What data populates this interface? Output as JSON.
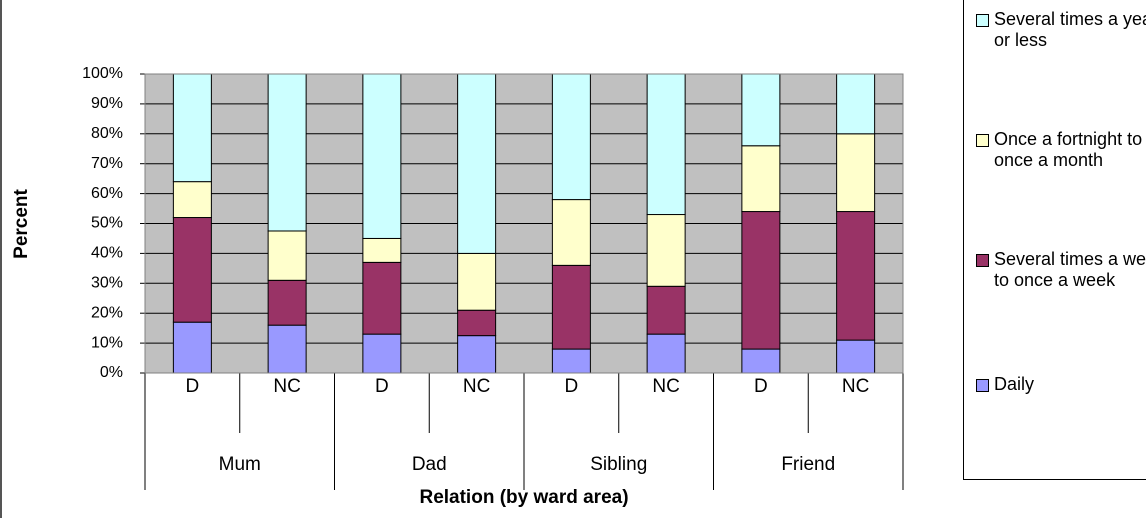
{
  "chart_data": {
    "type": "stacked_bar",
    "xlabel": "Relation (by ward area)",
    "ylabel": "Percent",
    "categories": [
      "D",
      "NC",
      "D",
      "NC",
      "D",
      "NC",
      "D",
      "NC"
    ],
    "groups": [
      "Mum",
      "Dad",
      "Sibling",
      "Friend"
    ],
    "series": [
      {
        "name": "Daily",
        "color": "#9999ff",
        "values": [
          17,
          16,
          13,
          12.5,
          8,
          13,
          8,
          11
        ]
      },
      {
        "name": "Several times a week to once a week",
        "color": "#993366",
        "values": [
          35,
          15,
          24,
          8.5,
          28,
          16,
          46,
          43
        ]
      },
      {
        "name": "Once a fortnight to once a month",
        "color": "#ffffcc",
        "values": [
          12,
          16.5,
          8,
          19,
          22,
          24,
          22,
          26
        ]
      },
      {
        "name": "Several times a year or less",
        "color": "#ccffff",
        "values": [
          36,
          52.5,
          55,
          60,
          42,
          47,
          24,
          20
        ]
      }
    ],
    "ylim": [
      0,
      100
    ],
    "yticks": [
      {
        "value": 0,
        "label": "0%"
      },
      {
        "value": 10,
        "label": "10%"
      },
      {
        "value": 20,
        "label": "20%"
      },
      {
        "value": 30,
        "label": "30%"
      },
      {
        "value": 40,
        "label": "40%"
      },
      {
        "value": 50,
        "label": "50%"
      },
      {
        "value": 60,
        "label": "60%"
      },
      {
        "value": 70,
        "label": "70%"
      },
      {
        "value": 80,
        "label": "80%"
      },
      {
        "value": 90,
        "label": "90%"
      },
      {
        "value": 100,
        "label": "100%"
      }
    ],
    "grid": true
  }
}
